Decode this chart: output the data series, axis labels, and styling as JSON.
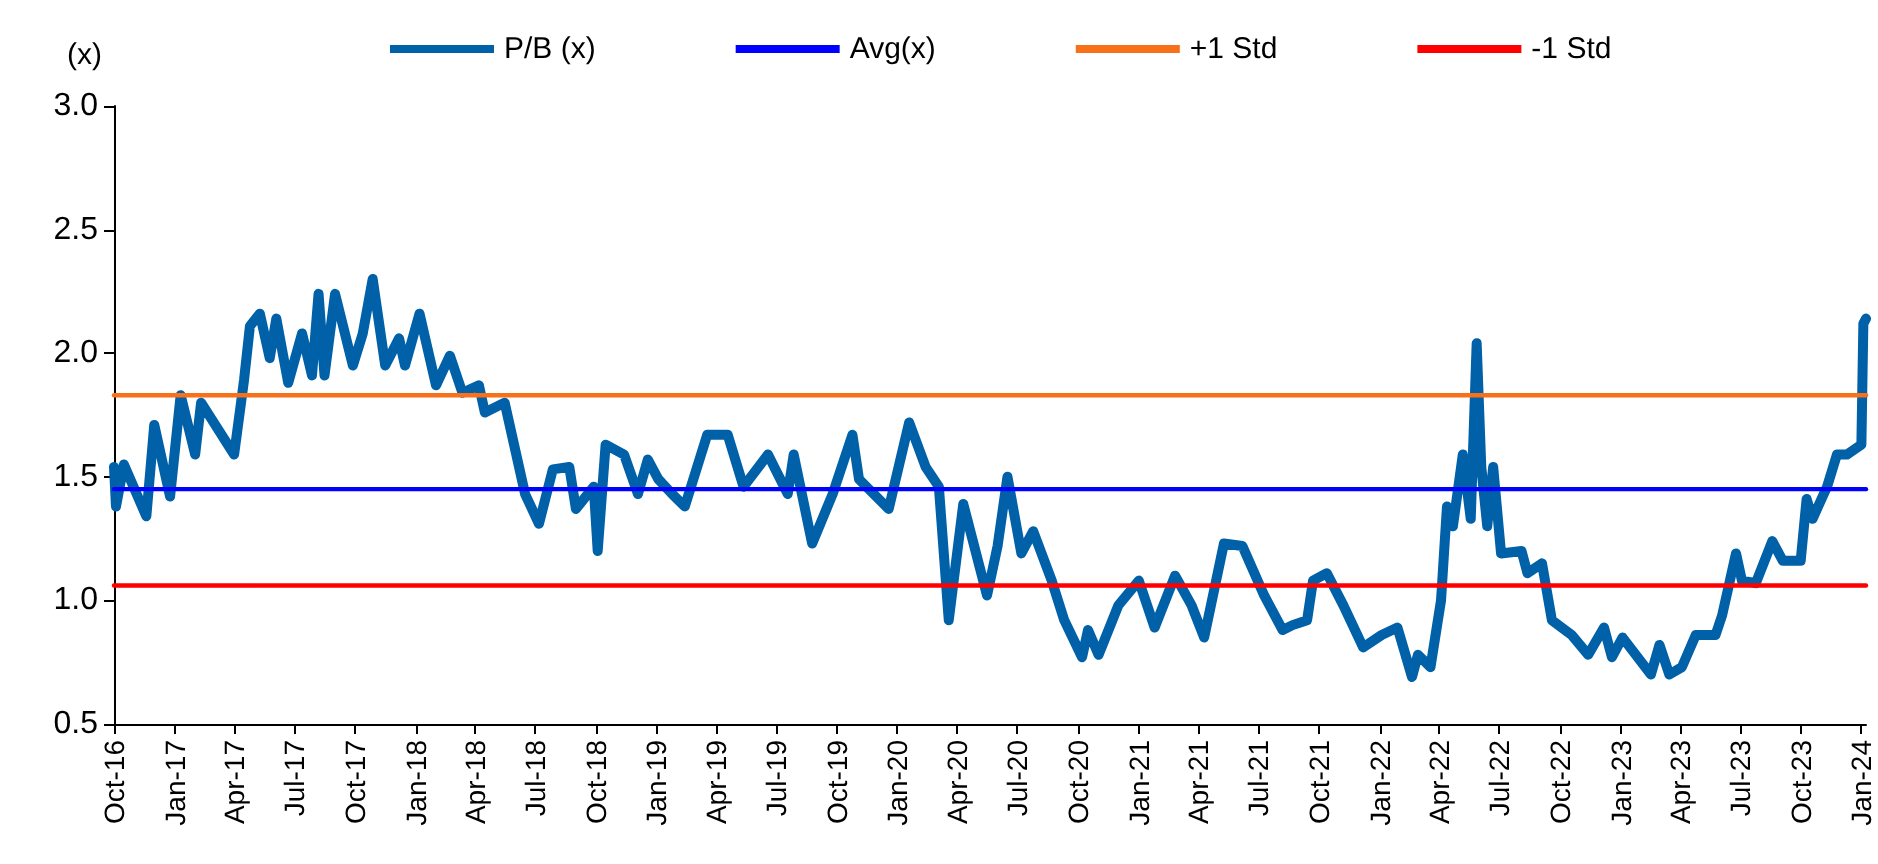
{
  "chart_data": {
    "type": "line",
    "ylabel": "(x)",
    "xlim": [
      "2016-10-01",
      "2024-01-08"
    ],
    "xticks": [
      {
        "value": "2016-10-01",
        "label": "Oct-16"
      },
      {
        "value": "2017-01-01",
        "label": "Jan-17"
      },
      {
        "value": "2017-04-01",
        "label": "Apr-17"
      },
      {
        "value": "2017-07-01",
        "label": "Jul-17"
      },
      {
        "value": "2017-10-01",
        "label": "Oct-17"
      },
      {
        "value": "2018-01-01",
        "label": "Jan-18"
      },
      {
        "value": "2018-04-01",
        "label": "Apr-18"
      },
      {
        "value": "2018-07-01",
        "label": "Jul-18"
      },
      {
        "value": "2018-10-01",
        "label": "Oct-18"
      },
      {
        "value": "2019-01-01",
        "label": "Jan-19"
      },
      {
        "value": "2019-04-01",
        "label": "Apr-19"
      },
      {
        "value": "2019-07-01",
        "label": "Jul-19"
      },
      {
        "value": "2019-10-01",
        "label": "Oct-19"
      },
      {
        "value": "2020-01-01",
        "label": "Jan-20"
      },
      {
        "value": "2020-04-01",
        "label": "Apr-20"
      },
      {
        "value": "2020-07-01",
        "label": "Jul-20"
      },
      {
        "value": "2020-10-01",
        "label": "Oct-20"
      },
      {
        "value": "2021-01-01",
        "label": "Jan-21"
      },
      {
        "value": "2021-04-01",
        "label": "Apr-21"
      },
      {
        "value": "2021-07-01",
        "label": "Jul-21"
      },
      {
        "value": "2021-10-01",
        "label": "Oct-21"
      },
      {
        "value": "2022-01-01",
        "label": "Jan-22"
      },
      {
        "value": "2022-04-01",
        "label": "Apr-22"
      },
      {
        "value": "2022-07-01",
        "label": "Jul-22"
      },
      {
        "value": "2022-10-01",
        "label": "Oct-22"
      },
      {
        "value": "2023-01-01",
        "label": "Jan-23"
      },
      {
        "value": "2023-04-01",
        "label": "Apr-23"
      },
      {
        "value": "2023-07-01",
        "label": "Jul-23"
      },
      {
        "value": "2023-10-01",
        "label": "Oct-23"
      },
      {
        "value": "2024-01-01",
        "label": "Jan-24"
      }
    ],
    "ylim": [
      0.5,
      3.0
    ],
    "yticks": [
      0.5,
      {
        "value": 1.0,
        "label": "1.0"
      },
      1.5,
      {
        "value": 2.0,
        "label": "2.0"
      },
      2.5,
      {
        "value": 3.0,
        "label": "3.0"
      }
    ],
    "grid": false,
    "legend": "top",
    "series": [
      {
        "name": "P/B (x)",
        "color": "#0060a8",
        "x": [
          "2016-10-01",
          "2016-10-04",
          "2016-10-16",
          "2016-11-19",
          "2016-12-01",
          "2016-12-25",
          "2017-01-10",
          "2017-02-01",
          "2017-02-10",
          "2017-04-01",
          "2017-04-16",
          "2017-04-25",
          "2017-05-10",
          "2017-05-25",
          "2017-06-04",
          "2017-06-22",
          "2017-07-13",
          "2017-07-28",
          "2017-08-07",
          "2017-08-16",
          "2017-09-01",
          "2017-09-28",
          "2017-10-13",
          "2017-10-28",
          "2017-11-16",
          "2017-12-07",
          "2017-12-16",
          "2018-01-07",
          "2018-02-01",
          "2018-02-22",
          "2018-03-13",
          "2018-04-07",
          "2018-04-16",
          "2018-05-16",
          "2018-06-16",
          "2018-07-07",
          "2018-07-28",
          "2018-08-22",
          "2018-09-01",
          "2018-09-28",
          "2018-10-04",
          "2018-10-16",
          "2018-11-13",
          "2018-12-04",
          "2018-12-19",
          "2019-01-04",
          "2019-01-25",
          "2019-02-13",
          "2019-03-19",
          "2019-04-19",
          "2019-05-13",
          "2019-06-19",
          "2019-07-19",
          "2019-07-28",
          "2019-08-25",
          "2019-09-25",
          "2019-10-25",
          "2019-11-04",
          "2019-12-19",
          "2020-01-19",
          "2020-02-13",
          "2020-03-04",
          "2020-03-19",
          "2020-04-10",
          "2020-05-16",
          "2020-06-01",
          "2020-06-16",
          "2020-07-07",
          "2020-07-25",
          "2020-08-22",
          "2020-09-10",
          "2020-10-07",
          "2020-10-16",
          "2020-11-01",
          "2020-12-01",
          "2021-01-01",
          "2021-01-25",
          "2021-02-25",
          "2021-03-22",
          "2021-04-10",
          "2021-05-10",
          "2021-06-07",
          "2021-07-10",
          "2021-08-07",
          "2021-08-22",
          "2021-09-13",
          "2021-09-22",
          "2021-10-13",
          "2021-11-07",
          "2021-12-07",
          "2022-01-04",
          "2022-01-28",
          "2022-02-19",
          "2022-02-28",
          "2022-03-19",
          "2022-04-04",
          "2022-04-13",
          "2022-04-22",
          "2022-05-07",
          "2022-05-19",
          "2022-05-28",
          "2022-06-04",
          "2022-06-13",
          "2022-06-22",
          "2022-07-04",
          "2022-08-04",
          "2022-08-13",
          "2022-09-04",
          "2022-09-19",
          "2022-10-19",
          "2022-11-13",
          "2022-12-07",
          "2022-12-19",
          "2023-01-04",
          "2023-02-16",
          "2023-03-01",
          "2023-03-16",
          "2023-04-04",
          "2023-04-25",
          "2023-05-25",
          "2023-06-04",
          "2023-06-25",
          "2023-07-04",
          "2023-07-25",
          "2023-08-19",
          "2023-09-04",
          "2023-10-01",
          "2023-10-10",
          "2023-10-19",
          "2023-11-10",
          "2023-11-25",
          "2023-12-10",
          "2024-01-01",
          "2024-01-04",
          "2024-01-08"
        ],
        "values": [
          1.54,
          1.38,
          1.55,
          1.34,
          1.71,
          1.42,
          1.83,
          1.59,
          1.8,
          1.59,
          1.89,
          2.11,
          2.16,
          1.98,
          2.14,
          1.88,
          2.08,
          1.91,
          2.24,
          1.91,
          2.24,
          1.95,
          2.08,
          2.3,
          1.95,
          2.06,
          1.95,
          2.16,
          1.87,
          1.99,
          1.84,
          1.87,
          1.76,
          1.8,
          1.43,
          1.31,
          1.53,
          1.54,
          1.37,
          1.46,
          1.2,
          1.63,
          1.59,
          1.43,
          1.57,
          1.49,
          1.43,
          1.38,
          1.67,
          1.67,
          1.46,
          1.59,
          1.43,
          1.59,
          1.23,
          1.43,
          1.67,
          1.49,
          1.37,
          1.72,
          1.54,
          1.46,
          0.92,
          1.39,
          1.02,
          1.22,
          1.5,
          1.19,
          1.28,
          1.08,
          0.92,
          0.77,
          0.88,
          0.78,
          0.98,
          1.08,
          0.89,
          1.1,
          0.98,
          0.85,
          1.23,
          1.22,
          1.02,
          0.88,
          0.9,
          0.92,
          1.08,
          1.11,
          0.98,
          0.81,
          0.86,
          0.89,
          0.69,
          0.78,
          0.73,
          1.0,
          1.38,
          1.3,
          1.59,
          1.33,
          2.04,
          1.54,
          1.3,
          1.54,
          1.19,
          1.2,
          1.11,
          1.15,
          0.92,
          0.86,
          0.78,
          0.89,
          0.77,
          0.85,
          0.7,
          0.82,
          0.7,
          0.73,
          0.86,
          0.86,
          0.94,
          1.19,
          1.08,
          1.07,
          1.24,
          1.16,
          1.16,
          1.41,
          1.33,
          1.46,
          1.59,
          1.59,
          1.63,
          2.12,
          2.14
        ]
      },
      {
        "name": "Avg(x)",
        "color": "#0000ff",
        "x": [
          "2016-10-01",
          "2024-01-08"
        ],
        "values": [
          1.45,
          1.45
        ]
      },
      {
        "name": "+1 Std",
        "color": "#f8701a",
        "x": [
          "2016-10-01",
          "2024-01-08"
        ],
        "values": [
          1.83,
          1.83
        ]
      },
      {
        "name": "-1 Std",
        "color": "#ff0000",
        "x": [
          "2016-10-01",
          "2024-01-08"
        ],
        "values": [
          1.06,
          1.06
        ]
      }
    ]
  }
}
